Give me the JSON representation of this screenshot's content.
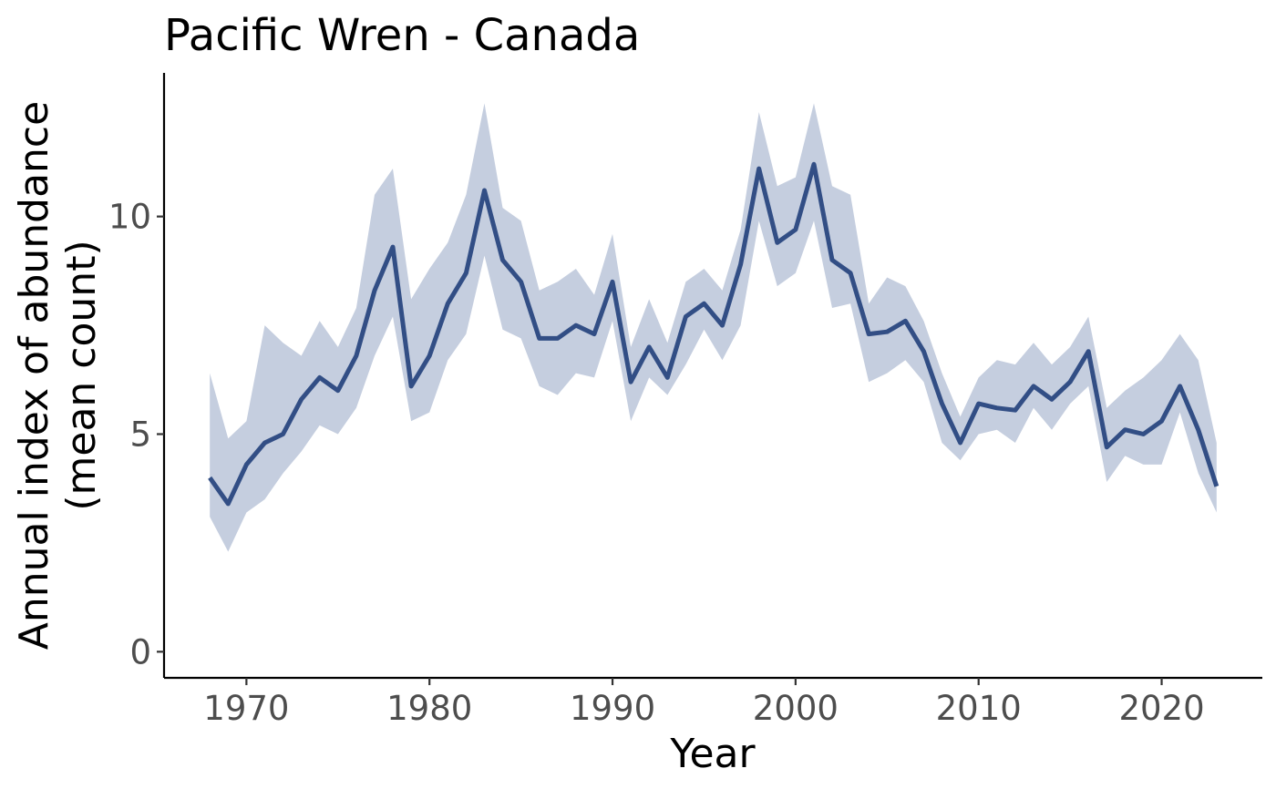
{
  "colors": {
    "line": "#324e85",
    "ribbon": "#c5cedf",
    "axis": "#000000",
    "tick_text": "#4d4d4d"
  },
  "chart_data": {
    "type": "line",
    "title": "Pacific Wren - Canada",
    "xlabel": "Year",
    "ylabel_lines": [
      "Annual index of abundance",
      "(mean count)"
    ],
    "xlim": [
      1965.5,
      2025.5
    ],
    "ylim": [
      -0.6,
      13.3
    ],
    "x_ticks": [
      1970,
      1980,
      1990,
      2000,
      2010,
      2020
    ],
    "x_tick_labels": [
      "1970",
      "1980",
      "1990",
      "2000",
      "2010",
      "2020"
    ],
    "y_ticks": [
      0,
      5,
      10
    ],
    "y_tick_labels": [
      "0",
      "5",
      "10"
    ],
    "grid": false,
    "legend": "none",
    "series": [
      {
        "x": [
          1968,
          1969,
          1970,
          1971,
          1972,
          1973,
          1974,
          1975,
          1976,
          1977,
          1978,
          1979,
          1980,
          1981,
          1982,
          1983,
          1984,
          1985,
          1986,
          1987,
          1988,
          1989,
          1990,
          1991,
          1992,
          1993,
          1994,
          1995,
          1996,
          1997,
          1998,
          1999,
          2000,
          2001,
          2002,
          2003,
          2004,
          2005,
          2006,
          2007,
          2008,
          2009,
          2010,
          2011,
          2012,
          2013,
          2014,
          2015,
          2016,
          2017,
          2018,
          2019,
          2020,
          2021,
          2022,
          2023
        ],
        "values": [
          4.0,
          3.4,
          4.3,
          4.8,
          5.0,
          5.8,
          6.3,
          6.0,
          6.8,
          8.3,
          9.3,
          6.1,
          6.8,
          8.0,
          8.7,
          10.6,
          9.0,
          8.5,
          7.2,
          7.2,
          7.5,
          7.3,
          8.5,
          6.2,
          7.0,
          6.3,
          7.7,
          8.0,
          7.5,
          8.9,
          11.1,
          9.4,
          9.7,
          11.2,
          9.0,
          8.7,
          7.3,
          7.35,
          7.6,
          6.9,
          5.7,
          4.8,
          5.7,
          5.6,
          5.55,
          6.1,
          5.8,
          6.2,
          6.9,
          4.7,
          5.1,
          5.0,
          5.3,
          6.1,
          5.1,
          3.8
        ],
        "lower": [
          3.1,
          2.3,
          3.2,
          3.5,
          4.1,
          4.6,
          5.2,
          5.0,
          5.6,
          6.8,
          7.7,
          5.3,
          5.5,
          6.7,
          7.3,
          9.1,
          7.4,
          7.2,
          6.1,
          5.9,
          6.4,
          6.3,
          7.6,
          5.3,
          6.3,
          5.9,
          6.6,
          7.4,
          6.7,
          7.5,
          9.9,
          8.4,
          8.7,
          9.9,
          7.9,
          8.0,
          6.2,
          6.4,
          6.7,
          6.2,
          4.8,
          4.4,
          5.0,
          5.1,
          4.8,
          5.6,
          5.1,
          5.7,
          6.1,
          3.9,
          4.5,
          4.3,
          4.3,
          5.5,
          4.1,
          3.2
        ],
        "upper": [
          6.4,
          4.9,
          5.3,
          7.5,
          7.1,
          6.8,
          7.6,
          7.0,
          7.9,
          10.5,
          11.1,
          8.1,
          8.8,
          9.4,
          10.5,
          12.6,
          10.2,
          9.9,
          8.3,
          8.5,
          8.8,
          8.2,
          9.6,
          7.0,
          8.1,
          7.1,
          8.5,
          8.8,
          8.3,
          9.7,
          12.4,
          10.7,
          10.9,
          12.6,
          10.7,
          10.5,
          8.0,
          8.6,
          8.4,
          7.6,
          6.4,
          5.4,
          6.3,
          6.7,
          6.6,
          7.1,
          6.6,
          7.0,
          7.7,
          5.6,
          6.0,
          6.3,
          6.7,
          7.3,
          6.7,
          4.8
        ]
      }
    ]
  }
}
